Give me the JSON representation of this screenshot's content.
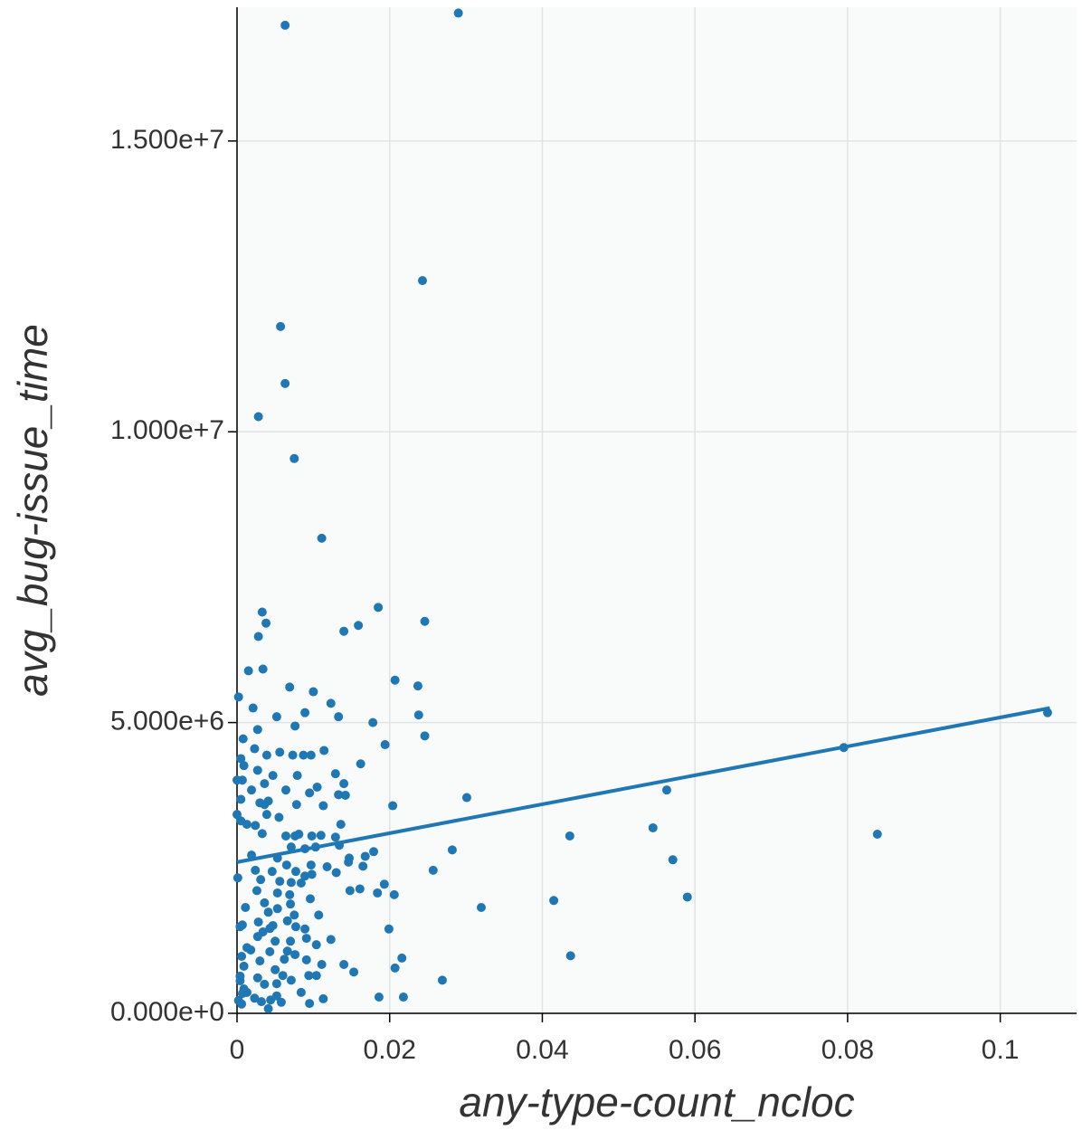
{
  "chart_data": {
    "type": "scatter",
    "xlabel": "any-type-count_ncloc",
    "ylabel": "avg_bug-issue_time",
    "xlim": [
      0,
      0.11
    ],
    "ylim": [
      0,
      17300000
    ],
    "xticks": [
      0,
      0.02,
      0.04,
      0.06,
      0.08,
      0.1
    ],
    "yticks": [
      {
        "value": 0,
        "label": "0.000e+0"
      },
      {
        "value": 5000000,
        "label": "5.000e+6"
      },
      {
        "value": 10000000,
        "label": "1.000e+7"
      },
      {
        "value": 15000000,
        "label": "1.500e+7"
      }
    ],
    "grid": true,
    "series": [
      {
        "type": "scatter",
        "color": "#1f77b4",
        "x": [
          0.0063,
          0.029,
          0.0243,
          0.0057,
          0.0063,
          0.0028,
          0.0075,
          0.0111,
          0.0185,
          0.0033,
          0.0038,
          0.0246,
          0.014,
          0.0159,
          0.0028,
          0.0015,
          0.0034,
          0.0207,
          0.0069,
          0.0237,
          0.01,
          0.0123,
          0.0021,
          0.0089,
          0.0133,
          0.0238,
          0.0052,
          0.0178,
          0.0076,
          0.0002,
          0.0246,
          0.0027,
          0.0194,
          0.0008,
          0.0114,
          0.0023,
          0.0056,
          0.0087,
          0.0097,
          0.0073,
          0.0039,
          0.0005,
          0.0162,
          0.0009,
          0.0027,
          0.0129,
          0.0079,
          0.0047,
          0,
          0.0007,
          0.0036,
          0.014,
          0.0105,
          0.0019,
          0.0064,
          0.0095,
          0.0133,
          0.0142,
          0.0301,
          0.0563,
          0.0041,
          0.0036,
          0.003,
          0.0204,
          0.0078,
          0.0113,
          0.0005,
          0,
          0.0039,
          0.0055,
          0.0005,
          0.0024,
          0.0013,
          0.0136,
          0.0545,
          0.0436,
          0.0839,
          0.0098,
          0.011,
          0.0076,
          0.0081,
          0.0064,
          0.0033,
          0.0129,
          0.0071,
          0.0089,
          0.0103,
          0.0134,
          0.0179,
          0.0168,
          0.0282,
          0.0019,
          0.0571,
          0.0147,
          0.0053,
          0.0065,
          0.0097,
          0.0146,
          0.0165,
          0.0118,
          0.0257,
          0.0024,
          0.0046,
          0.0077,
          0.0031,
          0.0089,
          0.0098,
          0.013,
          0.0001,
          0.0056,
          0.0071,
          0.0084,
          0.0193,
          0.0026,
          0.0161,
          0.0148,
          0.0053,
          0.0069,
          0.0184,
          0.0206,
          0.059,
          0.0415,
          0.0096,
          0.0036,
          0.007,
          0.032,
          0.0011,
          0.0053,
          0.0041,
          0.0075,
          0.0107,
          0.0007,
          0.0028,
          0.0047,
          0.0066,
          0.0077,
          0.0089,
          0.0199,
          0.0004,
          0.0043,
          0.0034,
          0.0027,
          0.0091,
          0.0123,
          0.0013,
          0.005,
          0.007,
          0.0104,
          0.0066,
          0.0018,
          0.0043,
          0.0006,
          0.0437,
          0.0216,
          0.0076,
          0.0062,
          0.003,
          0.0091,
          0.0111,
          0.014,
          0.0009,
          0.0207,
          0.005,
          0.0153,
          0.006,
          0.0027,
          0.0104,
          0.0094,
          0.0004,
          0.0071,
          0.0269,
          0.0052,
          0.0004,
          0.0036,
          0.0009,
          0.0013,
          0.0084,
          0.0052,
          0.0218,
          0.0186,
          0.0023,
          0.0002,
          0.0032,
          0.0044,
          0.0113,
          0.0058,
          0.0095,
          0.0006,
          0.0041,
          0.0007,
          0.0795,
          0.1062
        ],
        "values": [
          16990000,
          17200000,
          12600000,
          11810000,
          10830000,
          10260000,
          9540000,
          8170000,
          6980000,
          6900000,
          6710000,
          6740000,
          6570000,
          6670000,
          6480000,
          5890000,
          5920000,
          5730000,
          5610000,
          5630000,
          5530000,
          5330000,
          5250000,
          5170000,
          5100000,
          5130000,
          5100000,
          5000000,
          4940000,
          5440000,
          4770000,
          4880000,
          4620000,
          4720000,
          4520000,
          4550000,
          4490000,
          4440000,
          4440000,
          4440000,
          4440000,
          4380000,
          4290000,
          4260000,
          4180000,
          4120000,
          4090000,
          4090000,
          4010000,
          4010000,
          3950000,
          3950000,
          3890000,
          3840000,
          3840000,
          3790000,
          3760000,
          3750000,
          3710000,
          3840000,
          3650000,
          3590000,
          3620000,
          3570000,
          3590000,
          3570000,
          3680000,
          3420000,
          3420000,
          3370000,
          3310000,
          3230000,
          3250000,
          3250000,
          3190000,
          3050000,
          3080000,
          3050000,
          3060000,
          3050000,
          3080000,
          3050000,
          3090000,
          3030000,
          2860000,
          2830000,
          2860000,
          2890000,
          2780000,
          2700000,
          2810000,
          2720000,
          2640000,
          2670000,
          2670000,
          2550000,
          2550000,
          2600000,
          2530000,
          2520000,
          2460000,
          2460000,
          2440000,
          2440000,
          2300000,
          2360000,
          2390000,
          2420000,
          2330000,
          2270000,
          2250000,
          2240000,
          2220000,
          2110000,
          2140000,
          2110000,
          2070000,
          2040000,
          2070000,
          2040000,
          2000000,
          1940000,
          1970000,
          1900000,
          1880000,
          1820000,
          1820000,
          1800000,
          1740000,
          1690000,
          1690000,
          1520000,
          1570000,
          1510000,
          1590000,
          1490000,
          1450000,
          1450000,
          1490000,
          1460000,
          1400000,
          1320000,
          1290000,
          1270000,
          1130000,
          1240000,
          1240000,
          1180000,
          1070000,
          1090000,
          1060000,
          980000,
          990000,
          950000,
          1010000,
          930000,
          900000,
          920000,
          840000,
          840000,
          810000,
          780000,
          750000,
          710000,
          650000,
          610000,
          650000,
          650000,
          640000,
          570000,
          570000,
          510000,
          560000,
          500000,
          420000,
          360000,
          360000,
          300000,
          280000,
          280000,
          260000,
          220000,
          200000,
          230000,
          250000,
          190000,
          170000,
          160000,
          80000,
          340000,
          4570000,
          5170000
        ]
      },
      {
        "type": "line",
        "color": "#1f77b4",
        "x": [
          0,
          0.1065
        ],
        "values": [
          2600000,
          5250000
        ]
      }
    ]
  }
}
